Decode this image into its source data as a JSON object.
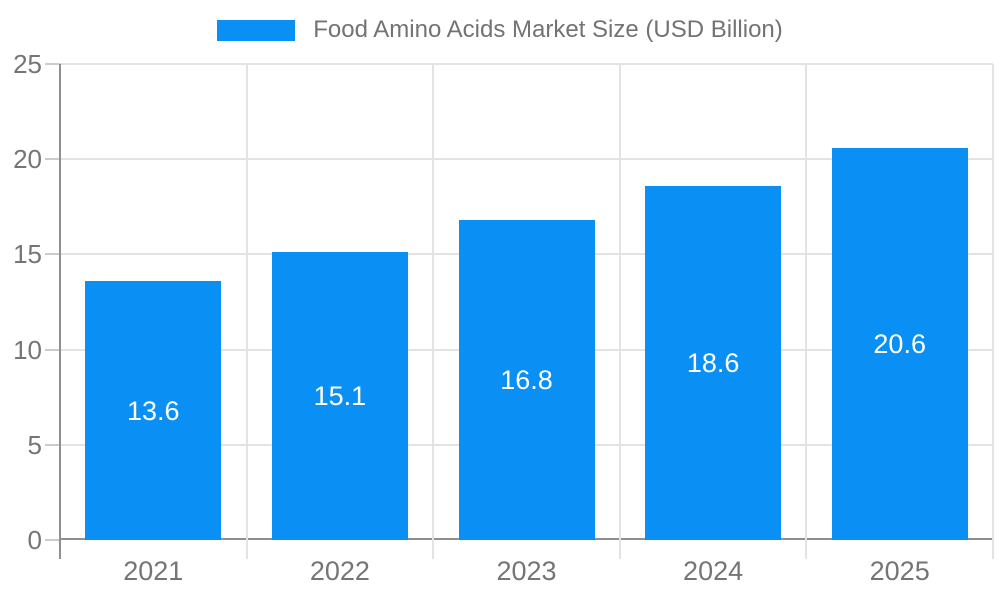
{
  "chart_data": {
    "type": "bar",
    "title": "Food Amino Acids Market Size (USD Billion)",
    "categories": [
      "2021",
      "2022",
      "2023",
      "2024",
      "2025"
    ],
    "values": [
      13.6,
      15.1,
      16.8,
      18.6,
      20.6
    ],
    "value_labels": [
      "13.6",
      "15.1",
      "16.8",
      "18.6",
      "20.6"
    ],
    "xlabel": "",
    "ylabel": "",
    "ylim": [
      0,
      25
    ],
    "yticks": [
      0,
      5,
      10,
      15,
      20,
      25
    ],
    "grid": true,
    "legend_position": "top",
    "colors": {
      "bar": "#0a90f5",
      "grid": "#e3e3e3",
      "axis": "#8f8f8f",
      "y_tick_stub": "#cccccc",
      "tick_label": "#757575",
      "title": "#737373",
      "value_label": "#ffffff",
      "background": "#ffffff"
    }
  }
}
